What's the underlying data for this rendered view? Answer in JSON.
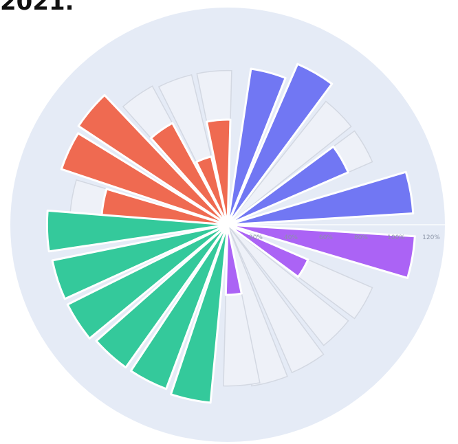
{
  "title": "2021.",
  "chart_data": {
    "type": "barpolar",
    "title": "2021.",
    "radial_axis": {
      "range": [
        0,
        120
      ],
      "tick_labels": [
        "20%",
        "40%",
        "60%",
        "80%",
        "100%",
        "120%"
      ]
    },
    "background_color": "#e5ebf6",
    "empty_wedge_color": "#eef1f8",
    "series": [
      {
        "color": "#ef6a51",
        "points": [
          {
            "theta": 170,
            "r": 72
          },
          {
            "theta": 155,
            "r": 100
          },
          {
            "theta": 140,
            "r": 102
          },
          {
            "theta": 125,
            "r": 66
          },
          {
            "theta": 110,
            "r": 40
          },
          {
            "theta": 95,
            "r": 60
          }
        ]
      },
      {
        "color": "#7177f3",
        "points": [
          {
            "theta": 75,
            "r": 90
          },
          {
            "theta": 60,
            "r": 100
          },
          {
            "theta": 30,
            "r": 75
          },
          {
            "theta": 10,
            "r": 106
          }
        ]
      },
      {
        "color": "#ab63f5",
        "points": [
          {
            "theta": -10,
            "r": 107
          },
          {
            "theta": -30,
            "r": 50
          },
          {
            "theta": -85,
            "r": 40
          }
        ]
      },
      {
        "color": "#34c99b",
        "points": [
          {
            "theta": 182,
            "r": 103
          },
          {
            "theta": 198,
            "r": 102
          },
          {
            "theta": 213,
            "r": 102
          },
          {
            "theta": 228,
            "r": 100
          },
          {
            "theta": 243,
            "r": 100
          },
          {
            "theta": 258,
            "r": 102
          }
        ]
      }
    ],
    "empty_wedges": [
      {
        "theta": 170,
        "r": 90
      },
      {
        "theta": 140,
        "r": 85
      },
      {
        "theta": 125,
        "r": 90
      },
      {
        "theta": 110,
        "r": 88
      },
      {
        "theta": 95,
        "r": 88
      },
      {
        "theta": 75,
        "r": 88
      },
      {
        "theta": 45,
        "r": 90
      },
      {
        "theta": 30,
        "r": 90
      },
      {
        "theta": -30,
        "r": 90
      },
      {
        "theta": -45,
        "r": 88
      },
      {
        "theta": -60,
        "r": 92
      },
      {
        "theta": -75,
        "r": 93
      },
      {
        "theta": -85,
        "r": 92
      }
    ]
  }
}
